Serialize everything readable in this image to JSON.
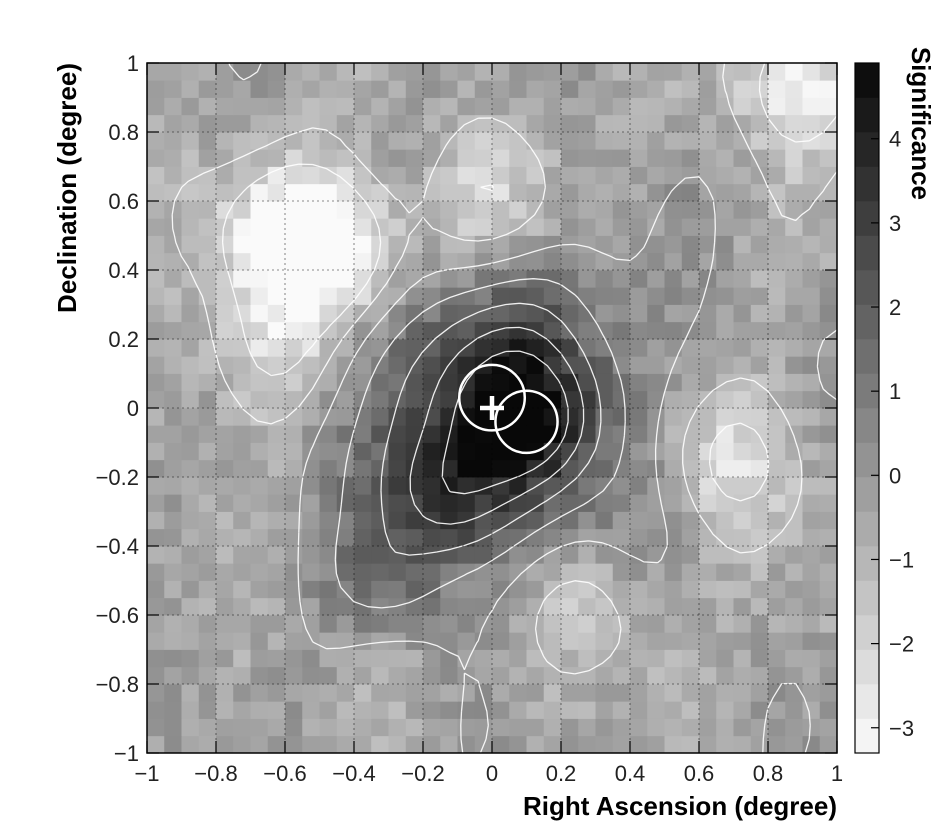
{
  "chart_data": {
    "type": "heatmap",
    "title": "",
    "xlabel": "Right Ascension (degree)",
    "ylabel": "Declination (degree)",
    "colorbar_label": "Significance",
    "xlim": [
      -1,
      1
    ],
    "ylim": [
      -1,
      1
    ],
    "zlim": [
      -3.3,
      4.9
    ],
    "grid": true,
    "colormap": "grayscale (white = low, black = high)",
    "x_ticks": [
      "−1",
      "−0.8",
      "−0.6",
      "−0.4",
      "−0.2",
      "0",
      "0.2",
      "0.4",
      "0.6",
      "0.8",
      "1"
    ],
    "y_ticks": [
      "−1",
      "−0.8",
      "−0.6",
      "−0.4",
      "−0.2",
      "0",
      "0.2",
      "0.4",
      "0.6",
      "0.8",
      "1"
    ],
    "colorbar_ticks": [
      "−3",
      "−2",
      "−1",
      "0",
      "1",
      "2",
      "3",
      "4"
    ],
    "peak": {
      "x": 0.0,
      "y": 0.0,
      "significance": 4.8
    },
    "secondary_peaks": [
      {
        "x": 0.12,
        "y": -0.04,
        "significance": 4.2
      },
      {
        "x": -0.15,
        "y": -0.26,
        "significance": 4.0
      },
      {
        "x": -0.3,
        "y": -0.5,
        "significance": 3.0
      }
    ],
    "low_regions": [
      {
        "x": -0.6,
        "y": 0.5,
        "significance": -2.5
      },
      {
        "x": -0.45,
        "y": 0.45,
        "significance": -3.0
      },
      {
        "x": 0.7,
        "y": -0.15,
        "significance": -2.0
      },
      {
        "x": -0.65,
        "y": 0.15,
        "significance": -1.8
      },
      {
        "x": 0.0,
        "y": 0.6,
        "significance": -1.5
      },
      {
        "x": 0.9,
        "y": 0.95,
        "significance": -2.5
      },
      {
        "x": 0.3,
        "y": -0.6,
        "significance": -1.2
      }
    ],
    "markers": [
      {
        "type": "cross",
        "x": 0.0,
        "y": 0.0
      },
      {
        "type": "circle",
        "x": 0.0,
        "y": 0.03,
        "r": 0.095
      },
      {
        "type": "circle",
        "x": 0.1,
        "y": -0.04,
        "r": 0.09
      }
    ],
    "contour_levels": [
      -2,
      -1,
      0,
      1,
      2,
      3,
      4
    ]
  }
}
